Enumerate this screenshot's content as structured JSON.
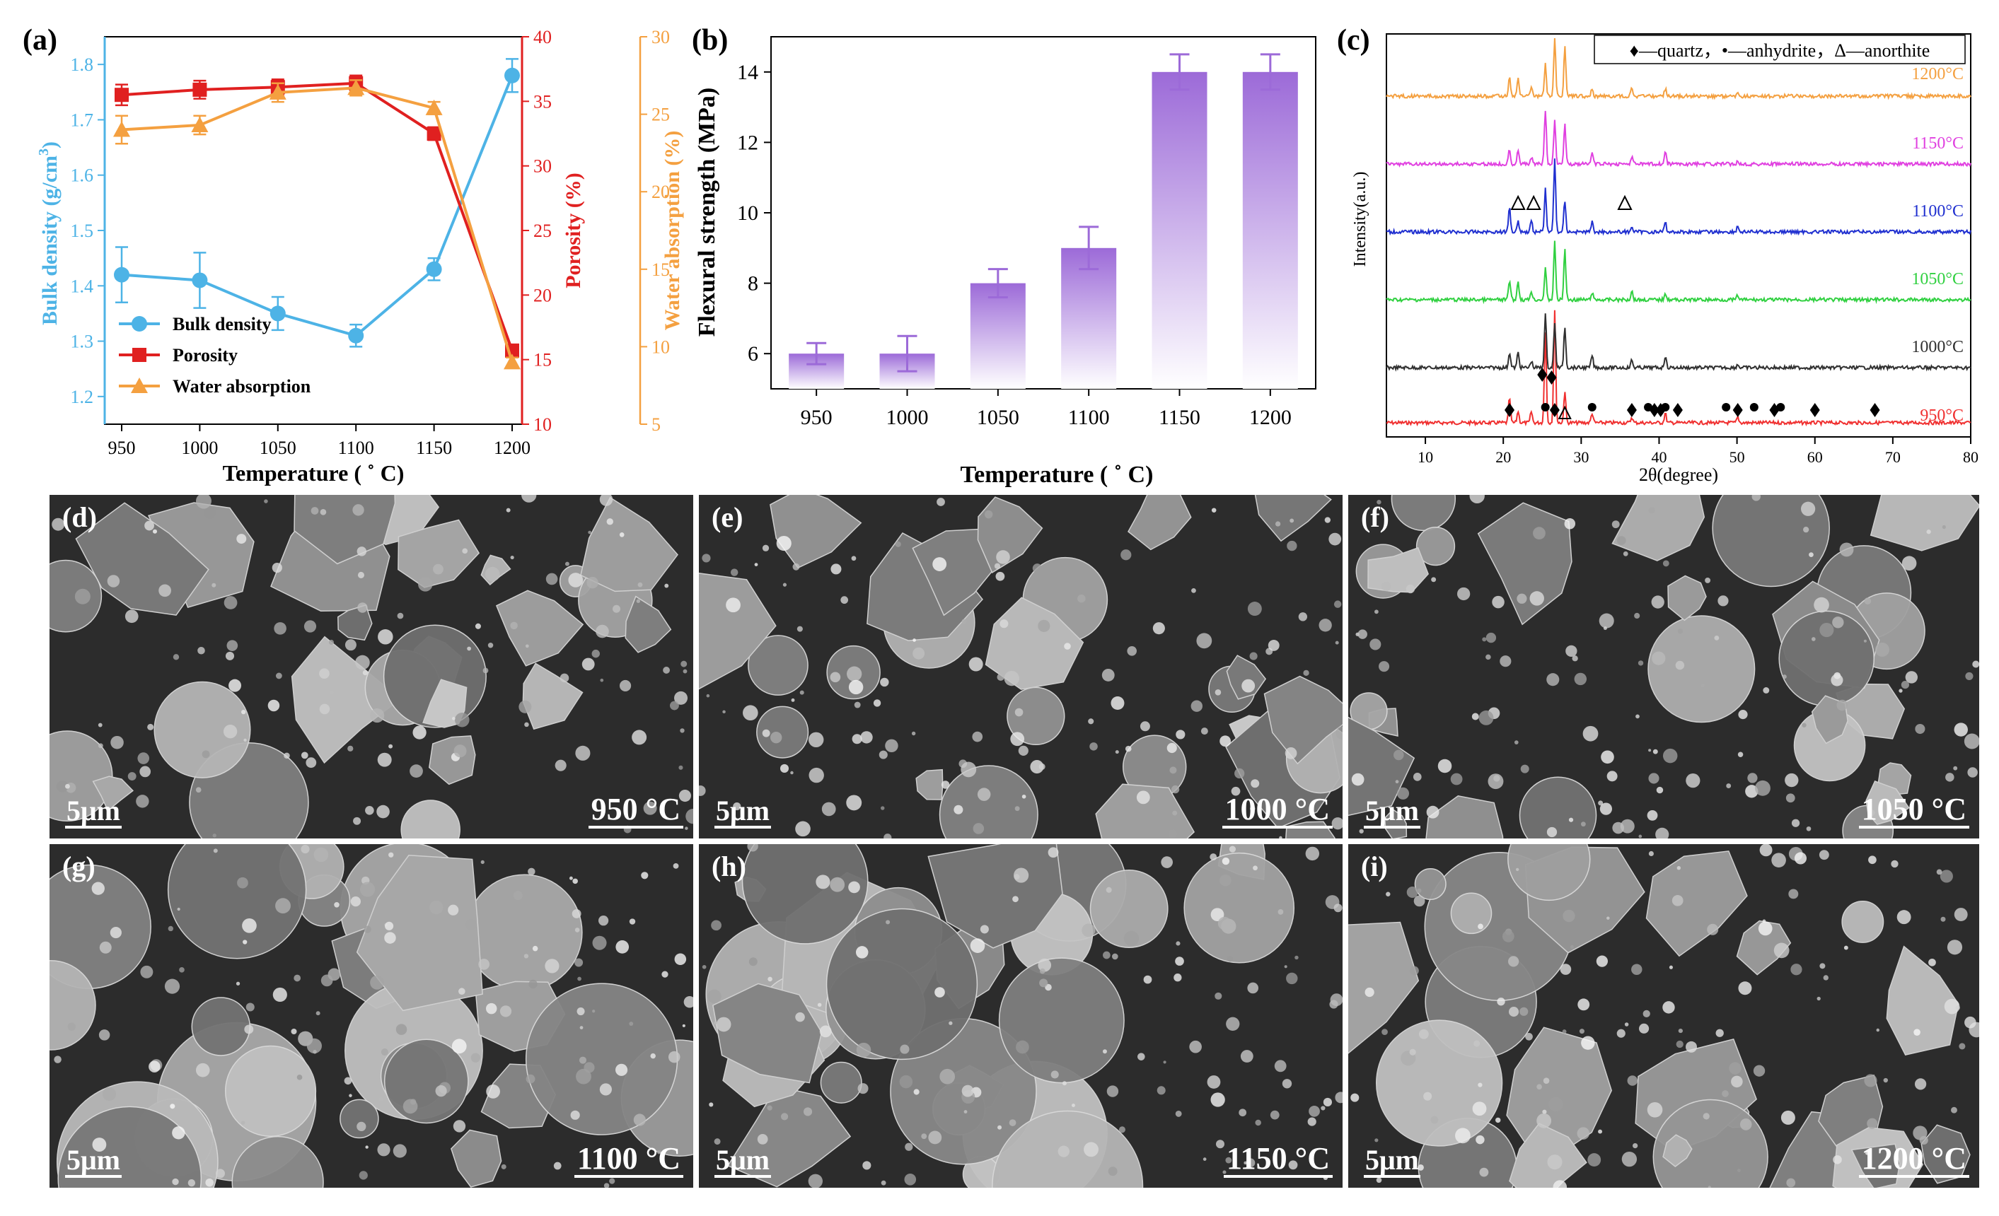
{
  "panels": {
    "a": "(a)",
    "b": "(b)",
    "c": "(c)",
    "d": "(d)",
    "e": "(e)",
    "f": "(f)",
    "g": "(g)",
    "h": "(h)",
    "i": "(i)"
  },
  "chart_data": [
    {
      "id": "a",
      "type": "line",
      "x": [
        950,
        1000,
        1050,
        1100,
        1150,
        1200
      ],
      "xlabel": "Temperature ( ˚ C)",
      "y_axes": [
        {
          "label": "Bulk density (g/cm³)",
          "label_main": "Bulk density (g/cm",
          "label_sup": "3",
          "label_end": ")",
          "ylim": [
            1.15,
            1.85
          ],
          "ticks": [
            1.2,
            1.3,
            1.4,
            1.5,
            1.6,
            1.7,
            1.8
          ],
          "color": "#4db3e6",
          "side": "left"
        },
        {
          "label": "Porosity (%)",
          "ylim": [
            10,
            40
          ],
          "ticks": [
            10,
            15,
            20,
            25,
            30,
            35,
            40
          ],
          "color": "#e02020",
          "side": "right-inner"
        },
        {
          "label": "Water absorption (%)",
          "ylim": [
            5,
            30
          ],
          "ticks": [
            5,
            10,
            15,
            20,
            25,
            30
          ],
          "color": "#f4a040",
          "side": "right-outer"
        }
      ],
      "series": [
        {
          "name": "Bulk density",
          "axis": 0,
          "values": [
            1.42,
            1.41,
            1.35,
            1.31,
            1.43,
            1.78
          ],
          "errors": [
            0.05,
            0.05,
            0.03,
            0.02,
            0.02,
            0.03
          ],
          "color": "#4db3e6",
          "marker": "circle"
        },
        {
          "name": "Porosity",
          "axis": 1,
          "values": [
            35.5,
            35.9,
            36.1,
            36.4,
            32.5,
            15.7
          ],
          "errors": [
            0.8,
            0.7,
            0.6,
            0.6,
            0.5,
            0.4
          ],
          "color": "#e02020",
          "marker": "square"
        },
        {
          "name": "Water absorption",
          "axis": 2,
          "values": [
            24.0,
            24.3,
            26.4,
            26.7,
            25.4,
            9.0
          ],
          "errors": [
            0.9,
            0.6,
            0.6,
            0.5,
            0.4,
            0.3
          ],
          "color": "#f4a040",
          "marker": "triangle"
        }
      ],
      "legend": "bottom-left"
    },
    {
      "id": "b",
      "type": "bar",
      "categories": [
        "950",
        "1000",
        "1050",
        "1100",
        "1150",
        "1200"
      ],
      "values": [
        6,
        6,
        8,
        9,
        14,
        14
      ],
      "errors": [
        0.3,
        0.5,
        0.4,
        0.6,
        0.5,
        0.5
      ],
      "xlabel": "Temperature ( ˚ C)",
      "ylabel": "Flexural strength (MPa)",
      "ylim": [
        5.0,
        15.0
      ],
      "yticks": [
        6,
        8,
        10,
        12,
        14
      ],
      "color": "#9c6ad8"
    },
    {
      "id": "c",
      "type": "line",
      "xlabel": "2θ(degree)",
      "ylabel": "Intensity(a.u.)",
      "xlim": [
        5,
        80
      ],
      "xticks": [
        10,
        20,
        30,
        40,
        50,
        60,
        70,
        80
      ],
      "legend_text": "♦—quartz，•—anhydrite，Δ—anorthite",
      "series": [
        {
          "name": "950°C",
          "color": "#f03030"
        },
        {
          "name": "1000°C",
          "color": "#303030"
        },
        {
          "name": "1050°C",
          "color": "#30d040"
        },
        {
          "name": "1100°C",
          "color": "#2030d0"
        },
        {
          "name": "1150°C",
          "color": "#e040e0"
        },
        {
          "name": "1200°C",
          "color": "#f4a040"
        }
      ],
      "quartz_peaks": [
        20.8,
        26.6,
        36.5,
        39.4,
        40.2,
        42.4,
        50.1,
        54.8,
        60.0,
        67.7
      ],
      "anhydrite_peaks": [
        25.4,
        31.4,
        38.6,
        40.8,
        48.6,
        52.2,
        55.6
      ],
      "anorthite_peaks_1100": [
        21.9,
        23.9,
        35.6
      ],
      "anorthite_peaks_950": [
        27.9
      ]
    }
  ],
  "sem": [
    {
      "id": "d",
      "scale": "5μm",
      "temp": "950 °C"
    },
    {
      "id": "e",
      "scale": "5μm",
      "temp": "1000 °C"
    },
    {
      "id": "f",
      "scale": "5μm",
      "temp": "1050 °C"
    },
    {
      "id": "g",
      "scale": "5μm",
      "temp": "1100 °C"
    },
    {
      "id": "h",
      "scale": "5μm",
      "temp": "1150 °C"
    },
    {
      "id": "i",
      "scale": "5μm",
      "temp": "1200 °C"
    }
  ]
}
